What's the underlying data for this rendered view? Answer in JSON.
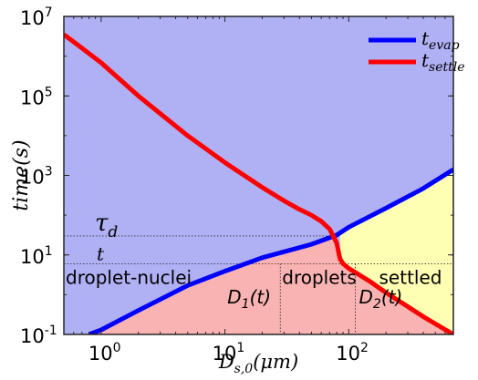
{
  "chart_data": {
    "type": "line",
    "x_scale": "log",
    "y_scale": "log",
    "xlim": [
      0.5,
      700
    ],
    "ylim": [
      0.1,
      10000000
    ],
    "xlabel": {
      "base": "D",
      "sub": "s,0",
      "rest": "(μm)"
    },
    "ylabel": "time(s)",
    "x_ticks": [
      {
        "value": 1,
        "base": "10",
        "exp": "0"
      },
      {
        "value": 10,
        "base": "10",
        "exp": "1"
      },
      {
        "value": 100,
        "base": "10",
        "exp": "2"
      }
    ],
    "y_ticks": [
      {
        "value": 0.1,
        "base": "10",
        "exp": "-1"
      },
      {
        "value": 10,
        "base": "10",
        "exp": "1"
      },
      {
        "value": 1000,
        "base": "10",
        "exp": "3"
      },
      {
        "value": 100000,
        "base": "10",
        "exp": "5"
      },
      {
        "value": 10000000,
        "base": "10",
        "exp": "7"
      }
    ],
    "legend": {
      "placement": "top-right",
      "entries": [
        {
          "base": "t",
          "sub": "evap",
          "color": "#0000ff"
        },
        {
          "base": "t",
          "sub": "settle",
          "color": "#ff0000"
        }
      ]
    },
    "series": [
      {
        "name": "t_evap",
        "color": "#0000ff",
        "x": [
          0.8,
          1,
          2,
          5,
          10,
          20,
          50,
          80,
          100,
          200,
          400,
          700
        ],
        "y": [
          0.1,
          0.13,
          0.4,
          1.7,
          3.9,
          8.5,
          18.5,
          31.6,
          50,
          150,
          470,
          1410
        ]
      },
      {
        "name": "t_settle",
        "color": "#ff0000",
        "x": [
          0.5,
          0.7,
          1,
          2,
          5,
          10,
          20,
          30,
          40,
          50,
          60,
          70,
          80,
          85,
          90,
          100,
          150,
          200,
          300,
          400,
          700
        ],
        "y": [
          3500000,
          1600000,
          680000,
          100000,
          10000,
          2100,
          500,
          230,
          140,
          100,
          70,
          45,
          20,
          8,
          6,
          4.6,
          2.1,
          1.12,
          0.5,
          0.28,
          0.1
        ]
      }
    ],
    "reference_lines": {
      "tau_d_y": 30,
      "t_y": 6,
      "D1_x": 28,
      "D2_x": 113
    },
    "region_fills": {
      "above_settle": "#b0b0f5",
      "below_settle": "#fab3b3",
      "settled": "#ffffb3"
    },
    "annotations": {
      "tau_d": {
        "base": "τ",
        "sub": "d"
      },
      "t": "t",
      "droplet_nuclei": "droplet-nuclei",
      "droplets": "droplets",
      "settled": "settled",
      "D1": {
        "base": "D",
        "sub": "1",
        "rest": "(t)"
      },
      "D2": {
        "base": "D",
        "sub": "2",
        "rest": "(t)"
      }
    }
  }
}
